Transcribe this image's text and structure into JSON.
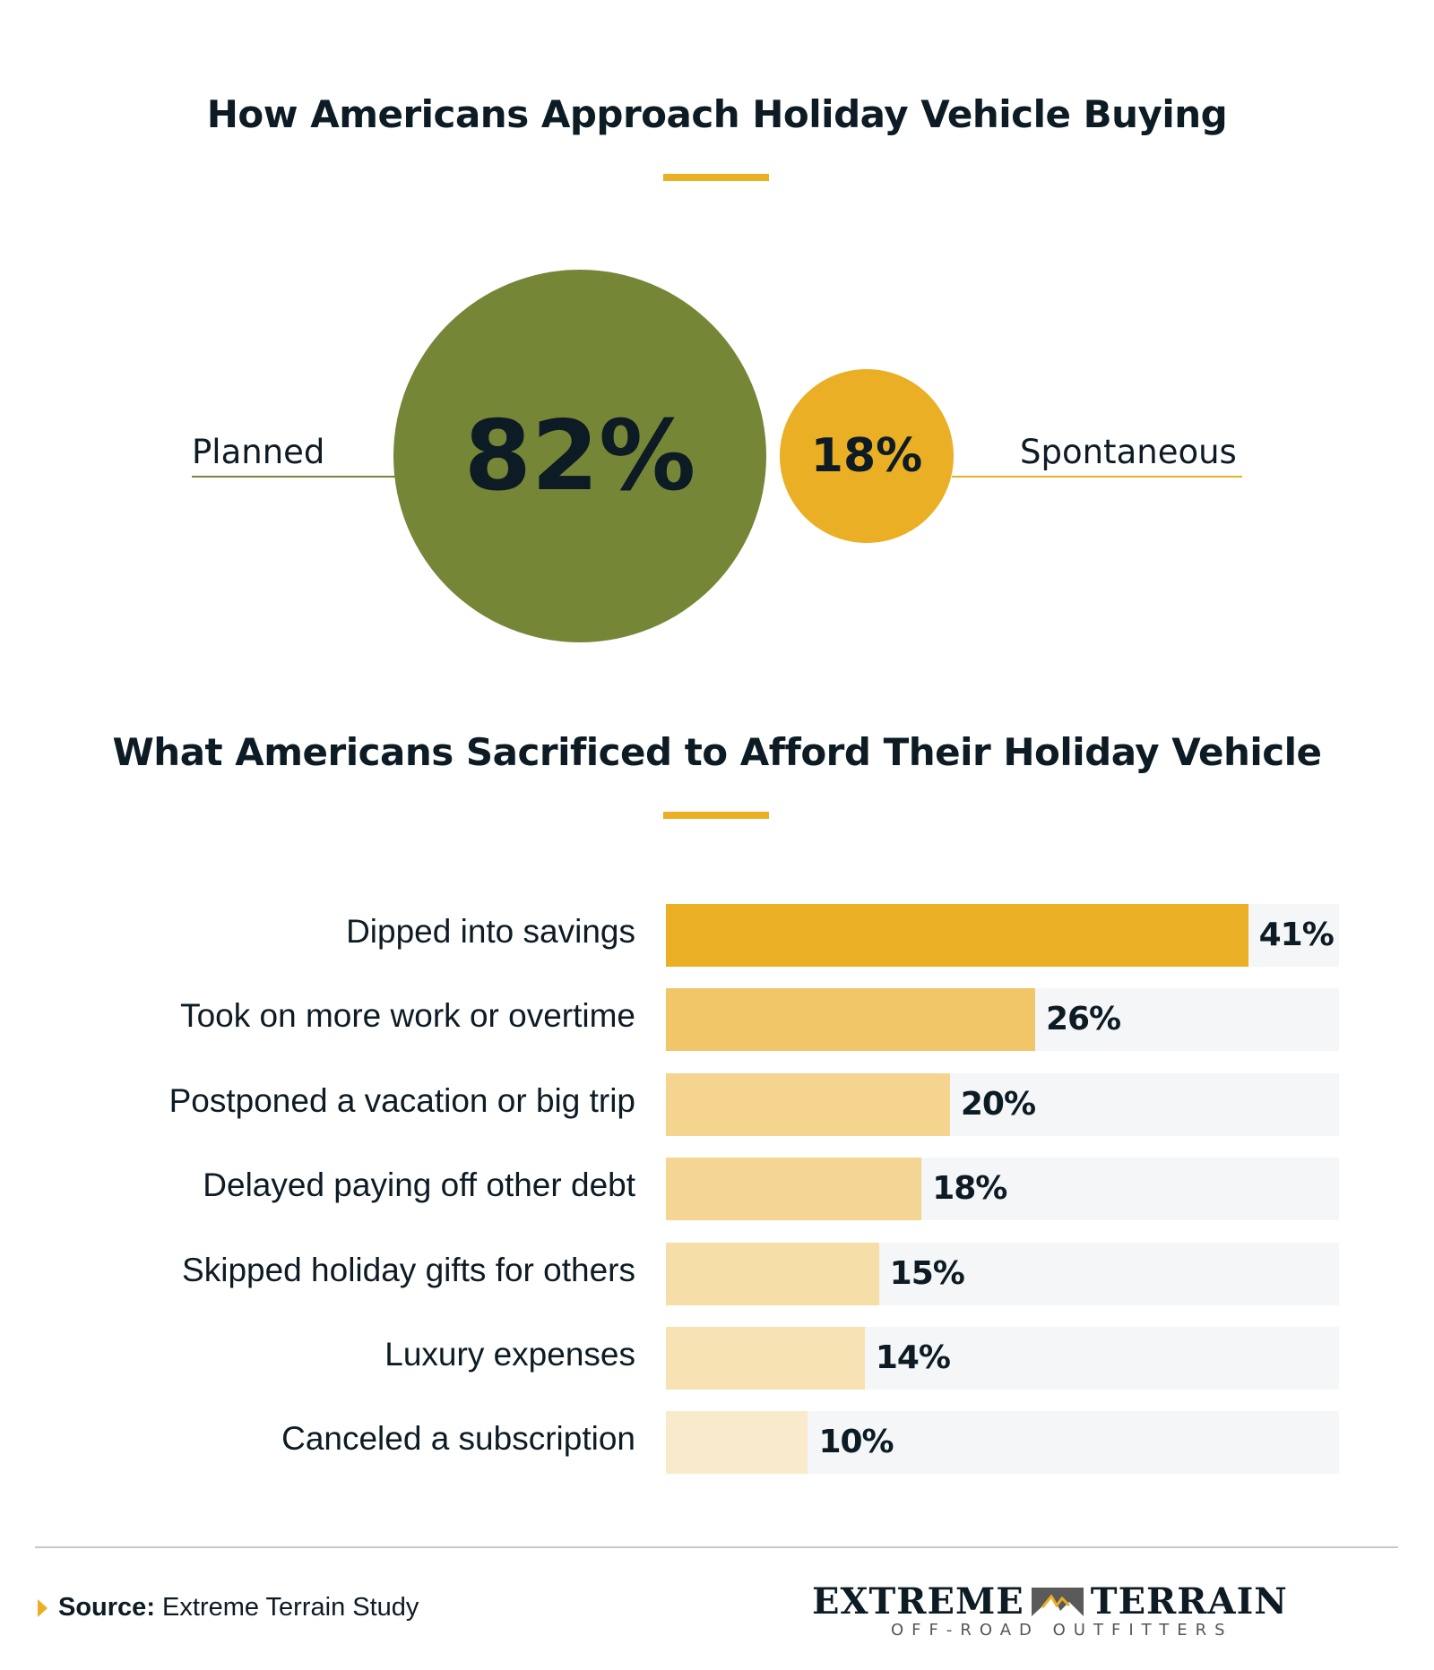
{
  "chart_data": [
    {
      "type": "bubble",
      "title": "How Americans Approach Holiday Vehicle Buying",
      "categories": [
        "Planned",
        "Spontaneous"
      ],
      "values": [
        82,
        18
      ],
      "value_labels": [
        "82%",
        "18%"
      ],
      "colors": [
        "#758637",
        "#eaaf24"
      ]
    },
    {
      "type": "bar",
      "orientation": "horizontal",
      "title": "What Americans Sacrificed to Afford Their Holiday Vehicle",
      "categories": [
        "Dipped into savings",
        "Took on more work or overtime",
        "Postponed a vacation or big trip",
        "Delayed paying off other debt",
        "Skipped holiday gifts for others",
        "Luxury expenses",
        "Canceled a subscription"
      ],
      "values": [
        41,
        26,
        20,
        18,
        15,
        14,
        10
      ],
      "value_labels": [
        "41%",
        "26%",
        "20%",
        "18%",
        "15%",
        "14%",
        "10%"
      ],
      "colors": [
        "#eaaf24",
        "#f0c669",
        "#f4d48f",
        "#f4d594",
        "#f5dea7",
        "#f6e2b3",
        "#f9eacb"
      ],
      "xlim": [
        0,
        47.4
      ],
      "xlabel": "",
      "ylabel": "",
      "grid": false
    }
  ],
  "footer": {
    "source_label": "Source:",
    "source_text": "Extreme Terrain Study"
  },
  "logo": {
    "word1": "EXTREME",
    "word2": "TERRAIN",
    "tagline": "OFF-ROAD OUTFITTERS"
  }
}
